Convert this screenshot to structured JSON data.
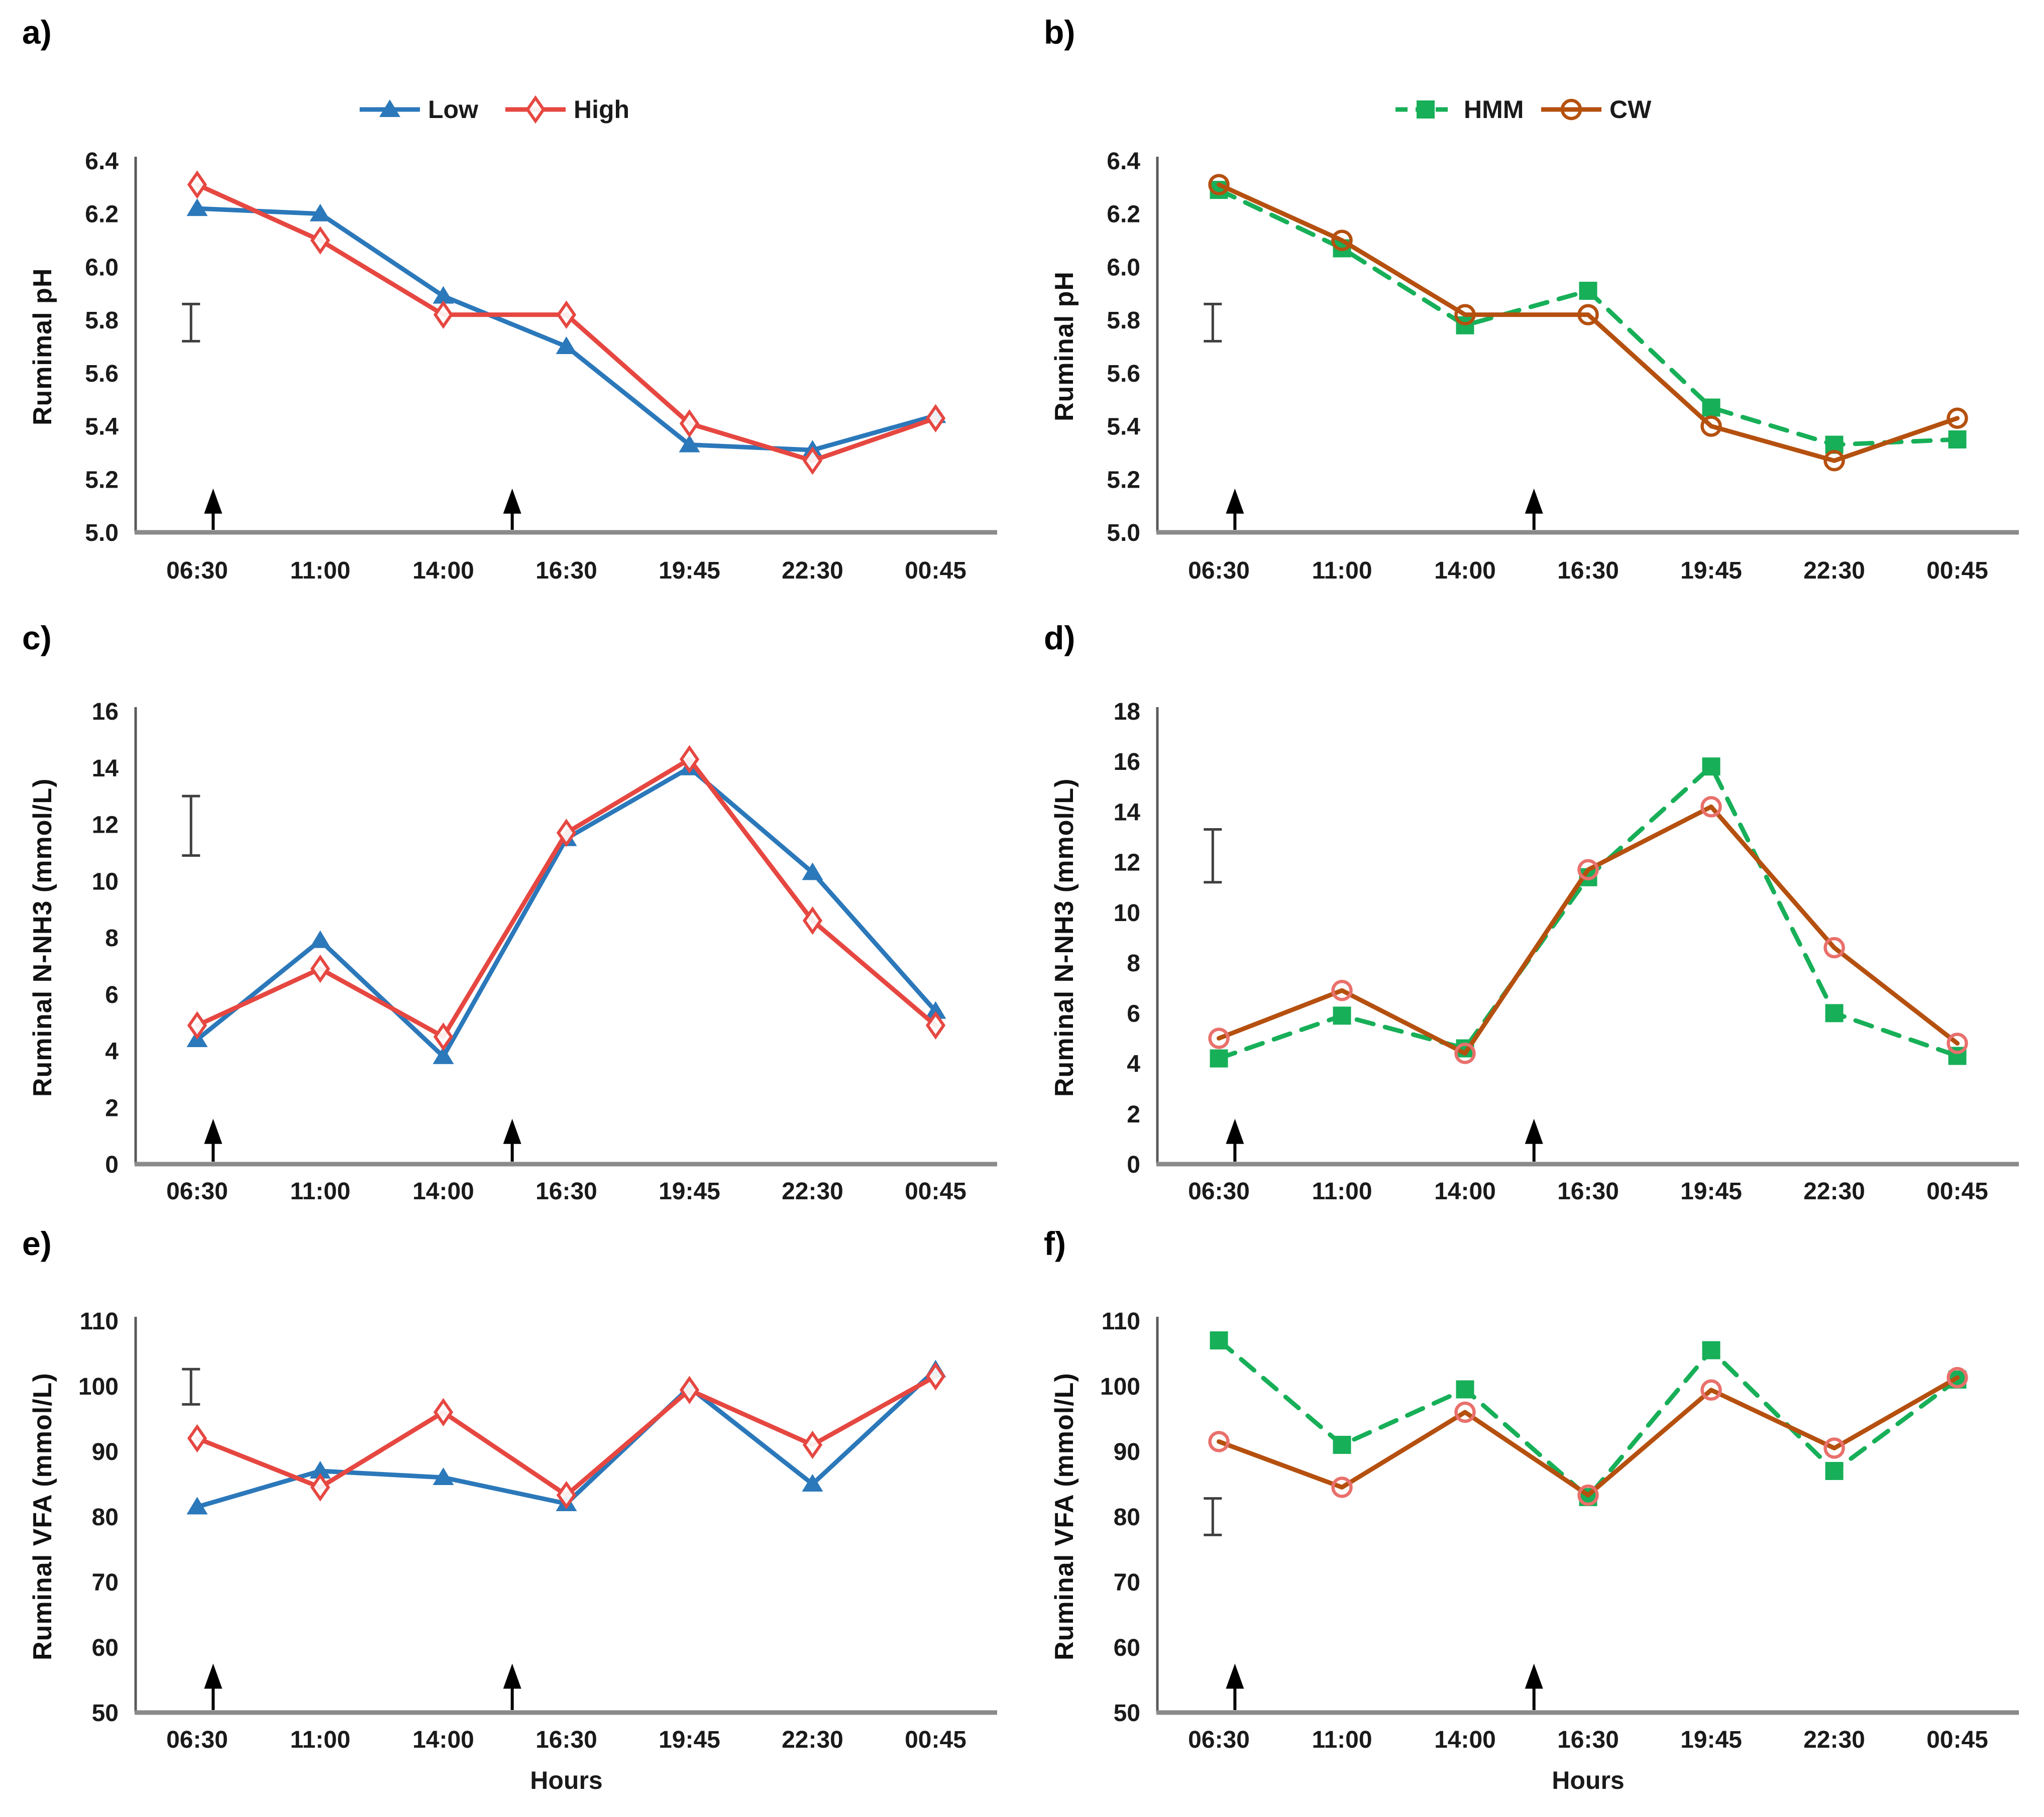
{
  "figure_type": "six-panel line chart figure (ruminal pH, N-NH3, VFA over time)",
  "x_axis_title": "Hours",
  "colors": {
    "low_blue": "#2B78BA",
    "high_red": "#E64741",
    "hmm_green": "#17AF58",
    "cw_brown": "#B5500F",
    "cw_marker_pink": "#E9706B",
    "axis_gray": "#8A8A8A",
    "text_dark": "#1A1A1A",
    "error_bar_gray": "#3F3F3F",
    "arrow_black": "#000000"
  },
  "chart_data": [
    {
      "id": "a",
      "panel_label": "a)",
      "type": "line",
      "categories": [
        "06:30",
        "11:00",
        "14:00",
        "16:30",
        "19:45",
        "22:30",
        "00:45"
      ],
      "series": [
        {
          "name": "Low",
          "color": "#2B78BA",
          "marker": "triangle-filled",
          "dashed": false,
          "values": [
            6.22,
            6.2,
            5.89,
            5.7,
            5.33,
            5.31,
            5.44
          ]
        },
        {
          "name": "High",
          "color": "#E64741",
          "marker": "diamond-open",
          "dashed": false,
          "values": [
            6.31,
            6.1,
            5.82,
            5.82,
            5.41,
            5.27,
            5.43
          ]
        }
      ],
      "xlabel": "",
      "ylabel": "Rumimal pH",
      "ylim": [
        5.0,
        6.4
      ],
      "ytick_step": 0.2,
      "ytick_decimals": 1,
      "grid": false,
      "legend_position": "top-center",
      "error_bar": {
        "x_index": -0.05,
        "from": 5.72,
        "to": 5.86
      },
      "arrows_x_index": [
        0.13,
        2.56
      ],
      "arrow_top_value": 5.165
    },
    {
      "id": "b",
      "panel_label": "b)",
      "type": "line",
      "categories": [
        "06:30",
        "11:00",
        "14:00",
        "16:30",
        "19:45",
        "22:30",
        "00:45"
      ],
      "series": [
        {
          "name": "HMM",
          "color": "#17AF58",
          "marker": "square-filled",
          "dashed": true,
          "values": [
            6.29,
            6.07,
            5.78,
            5.91,
            5.47,
            5.33,
            5.35
          ]
        },
        {
          "name": "CW",
          "color": "#B5500F",
          "marker": "circle-open",
          "dashed": false,
          "values": [
            6.31,
            6.1,
            5.82,
            5.82,
            5.4,
            5.27,
            5.43
          ]
        }
      ],
      "xlabel": "",
      "ylabel": "Ruminal pH",
      "ylim": [
        5.0,
        6.4
      ],
      "ytick_step": 0.2,
      "ytick_decimals": 1,
      "grid": false,
      "legend_position": "top-center",
      "error_bar": {
        "x_index": -0.05,
        "from": 5.72,
        "to": 5.86
      },
      "arrows_x_index": [
        0.13,
        2.56
      ],
      "arrow_top_value": 5.165
    },
    {
      "id": "c",
      "panel_label": "c)",
      "type": "line",
      "categories": [
        "06:30",
        "11:00",
        "14:00",
        "16:30",
        "19:45",
        "22:30",
        "00:45"
      ],
      "series": [
        {
          "name": "Low",
          "color": "#2B78BA",
          "marker": "triangle-filled",
          "dashed": false,
          "values": [
            4.4,
            7.9,
            3.8,
            11.5,
            14.0,
            10.3,
            5.4
          ]
        },
        {
          "name": "High",
          "color": "#E64741",
          "marker": "diamond-open",
          "dashed": false,
          "values": [
            4.9,
            6.9,
            4.5,
            11.7,
            14.3,
            8.6,
            4.9
          ]
        }
      ],
      "xlabel": "",
      "ylabel": "Ruminal N-NH3 (mmol/L)",
      "ylim": [
        0,
        16
      ],
      "ytick_step": 2,
      "ytick_decimals": 0,
      "grid": false,
      "legend_position": "none",
      "error_bar": {
        "x_index": -0.05,
        "from": 10.9,
        "to": 13.0
      },
      "arrows_x_index": [
        0.13,
        2.56
      ],
      "arrow_top_value": 1.6
    },
    {
      "id": "d",
      "panel_label": "d)",
      "type": "line",
      "categories": [
        "06:30",
        "11:00",
        "14:00",
        "16:30",
        "19:45",
        "22:30",
        "00:45"
      ],
      "series": [
        {
          "name": "HMM",
          "color": "#17AF58",
          "marker": "square-filled",
          "dashed": true,
          "values": [
            4.2,
            5.9,
            4.6,
            11.4,
            15.8,
            6.0,
            4.3
          ]
        },
        {
          "name": "CW",
          "color": "#B5500F",
          "marker": "circle-open",
          "marker_color": "#E9706B",
          "dashed": false,
          "values": [
            5.0,
            6.9,
            4.4,
            11.7,
            14.2,
            8.6,
            4.8
          ]
        }
      ],
      "xlabel": "",
      "ylabel": "Ruminal N-NH3 (mmol/L)",
      "ylim": [
        0,
        18
      ],
      "ytick_step": 2,
      "ytick_decimals": 0,
      "grid": false,
      "legend_position": "none",
      "error_bar": {
        "x_index": -0.05,
        "from": 11.2,
        "to": 13.3
      },
      "arrows_x_index": [
        0.13,
        2.56
      ],
      "arrow_top_value": 1.8
    },
    {
      "id": "e",
      "panel_label": "e)",
      "type": "line",
      "categories": [
        "06:30",
        "11:00",
        "14:00",
        "16:30",
        "19:45",
        "22:30",
        "00:45"
      ],
      "series": [
        {
          "name": "Low",
          "color": "#2B78BA",
          "marker": "triangle-filled",
          "dashed": false,
          "values": [
            81.5,
            87.0,
            86.0,
            82.0,
            99.8,
            85.0,
            102.5
          ]
        },
        {
          "name": "High",
          "color": "#E64741",
          "marker": "diamond-open",
          "dashed": false,
          "values": [
            92.0,
            84.5,
            96.0,
            83.3,
            99.4,
            91.0,
            101.5
          ]
        }
      ],
      "xlabel": "Hours",
      "ylabel": "Ruminal VFA (mmol/L)",
      "ylim": [
        50,
        110
      ],
      "ytick_step": 10,
      "ytick_decimals": 0,
      "grid": false,
      "legend_position": "none",
      "error_bar": {
        "x_index": -0.05,
        "from": 97.2,
        "to": 102.6
      },
      "arrows_x_index": [
        0.13,
        2.56
      ],
      "arrow_top_value": 57.5
    },
    {
      "id": "f",
      "panel_label": "f)",
      "type": "line",
      "categories": [
        "06:30",
        "11:00",
        "14:00",
        "16:30",
        "19:45",
        "22:30",
        "00:45"
      ],
      "series": [
        {
          "name": "HMM",
          "color": "#17AF58",
          "marker": "square-filled",
          "dashed": true,
          "values": [
            107.0,
            91.0,
            99.5,
            83.0,
            105.5,
            87.0,
            101.0
          ]
        },
        {
          "name": "CW",
          "color": "#B5500F",
          "marker": "circle-open",
          "marker_color": "#E9706B",
          "dashed": false,
          "values": [
            91.5,
            84.5,
            96.0,
            83.3,
            99.4,
            90.5,
            101.3
          ]
        }
      ],
      "xlabel": "Hours",
      "ylabel": "Ruminal VFA (mmol/L)",
      "ylim": [
        50,
        110
      ],
      "ytick_step": 10,
      "ytick_decimals": 0,
      "grid": false,
      "legend_position": "none",
      "error_bar": {
        "x_index": -0.05,
        "from": 77.2,
        "to": 82.8
      },
      "arrows_x_index": [
        0.13,
        2.56
      ],
      "arrow_top_value": 57.5
    }
  ]
}
